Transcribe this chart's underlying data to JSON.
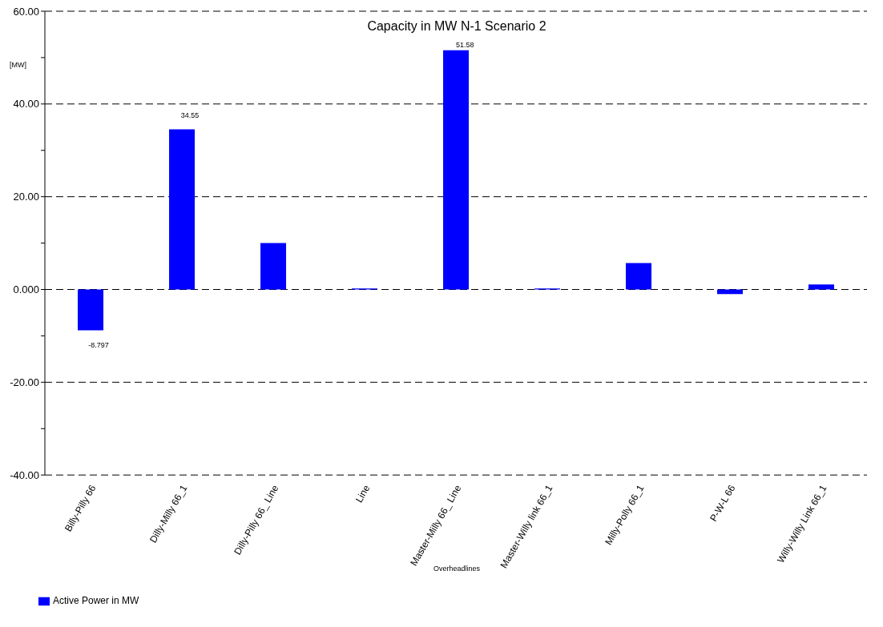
{
  "chart_data": {
    "type": "bar",
    "title": "Capacity in MW N-1 Scenario 2",
    "xlabel": "Overheadlines",
    "ylabel": "[MW]",
    "categories": [
      "Billy-Pilly 66",
      "Dilly-Milly 66_1",
      "Dilly-Pilly 66_ Line",
      "Line",
      "Master-Milly 66_ Line",
      "Master-Willy link 66_1",
      "Milly-Polly 66_1",
      "P-W-L 66",
      "Willy-Willy Link 66_1"
    ],
    "series": [
      {
        "name": "Active Power in MW",
        "color": "#0000ff",
        "values": [
          -8.797,
          34.55,
          10.0,
          0.2,
          51.58,
          0.2,
          5.7,
          -1.0,
          1.1
        ],
        "value_labels": [
          "-8.797",
          "34.55",
          null,
          null,
          "51.58",
          null,
          null,
          null,
          null
        ]
      }
    ],
    "ylim": [
      -40,
      60
    ],
    "yticks": [
      {
        "value": -40,
        "label": "-40.00"
      },
      {
        "value": -30,
        "label": null
      },
      {
        "value": -20,
        "label": "-20.00"
      },
      {
        "value": -10,
        "label": null
      },
      {
        "value": 0,
        "label": "0.000"
      },
      {
        "value": 10,
        "label": null
      },
      {
        "value": 20,
        "label": "20.00"
      },
      {
        "value": 30,
        "label": null
      },
      {
        "value": 40,
        "label": "40.00"
      },
      {
        "value": 50,
        "label": null
      },
      {
        "value": 60,
        "label": "60.00"
      }
    ],
    "grid": "y",
    "legend": "bottom left"
  }
}
